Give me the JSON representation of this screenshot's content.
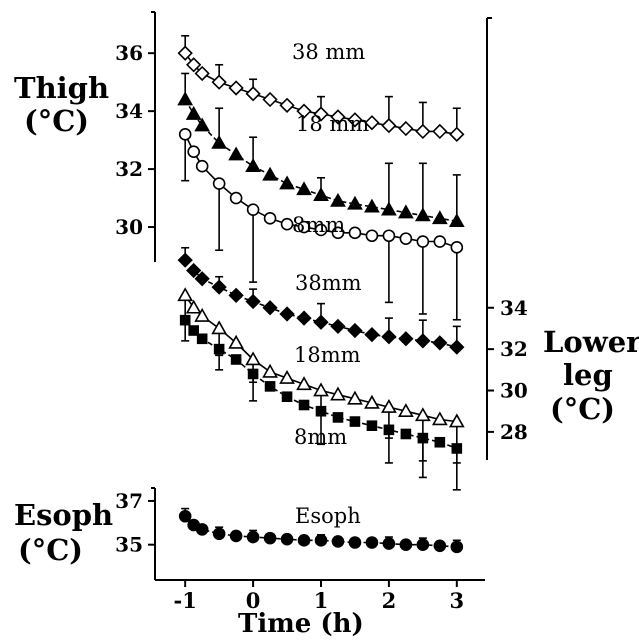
{
  "chart_data": {
    "type": "line",
    "xlabel": "Time (h)",
    "x_ticks": [
      "-1",
      "0",
      "1",
      "2",
      "3"
    ],
    "xlim": [
      -1.15,
      3.15
    ],
    "panels": [
      {
        "id": "thigh",
        "label_line1": "Thigh",
        "label_line2": "(°C)",
        "y_ticks": [
          "36",
          "34",
          "32",
          "30"
        ],
        "ylim": [
          28.0,
          36.8
        ],
        "series": [
          {
            "name": "38 mm",
            "marker": "diamond-open",
            "line": "solid",
            "x": [
              -1,
              -0.875,
              -0.75,
              -0.5,
              -0.25,
              0,
              0.25,
              0.5,
              0.75,
              1,
              1.25,
              1.5,
              1.75,
              2,
              2.25,
              2.5,
              2.75,
              3
            ],
            "y": [
              36.0,
              35.6,
              35.3,
              35.0,
              34.8,
              34.6,
              34.4,
              34.2,
              34.0,
              33.9,
              33.8,
              33.7,
              33.6,
              33.5,
              33.4,
              33.3,
              33.3,
              33.2
            ],
            "err": [
              0.6,
              0,
              0,
              0.6,
              0,
              0.5,
              0,
              0,
              0,
              0.6,
              0,
              0,
              0,
              1.0,
              0,
              1.0,
              0,
              0.9
            ]
          },
          {
            "name": "18 mm",
            "marker": "triangle-filled",
            "line": "dashed",
            "x": [
              -1,
              -0.875,
              -0.75,
              -0.5,
              -0.25,
              0,
              0.25,
              0.5,
              0.75,
              1,
              1.25,
              1.5,
              1.75,
              2,
              2.25,
              2.5,
              2.75,
              3
            ],
            "y": [
              34.4,
              33.9,
              33.5,
              32.9,
              32.5,
              32.1,
              31.8,
              31.5,
              31.3,
              31.1,
              30.9,
              30.8,
              30.7,
              30.6,
              30.5,
              30.4,
              30.3,
              30.2
            ],
            "err": [
              0.9,
              0,
              0,
              1.2,
              0,
              1.0,
              0,
              0,
              0,
              0.6,
              0,
              0,
              0,
              1.6,
              0,
              1.8,
              0,
              1.6
            ]
          },
          {
            "name": "8mm",
            "marker": "circle-open",
            "line": "solid",
            "x": [
              -1,
              -0.875,
              -0.75,
              -0.5,
              -0.25,
              0,
              0.25,
              0.5,
              0.75,
              1,
              1.25,
              1.5,
              1.75,
              2,
              2.25,
              2.5,
              2.75,
              3
            ],
            "y": [
              33.2,
              32.6,
              32.1,
              31.5,
              31.0,
              30.6,
              30.3,
              30.1,
              30.0,
              29.9,
              29.8,
              29.8,
              29.7,
              29.7,
              29.6,
              29.5,
              29.5,
              29.3
            ],
            "err": [
              1.6,
              0,
              0,
              2.3,
              0,
              2.5,
              0,
              0,
              0,
              0,
              0,
              0,
              0,
              2.3,
              0,
              2.5,
              0,
              2.5
            ]
          }
        ]
      },
      {
        "id": "lower_leg",
        "label_line1": "Lower",
        "label_line2": "leg",
        "label_line3": "(°C)",
        "y_ticks": [
          "34",
          "32",
          "30",
          "28"
        ],
        "ylim": [
          26.4,
          38.0
        ],
        "series": [
          {
            "name": "38mm",
            "marker": "diamond-filled",
            "line": "dashed",
            "x": [
              -1,
              -0.875,
              -0.75,
              -0.5,
              -0.25,
              0,
              0.25,
              0.5,
              0.75,
              1,
              1.25,
              1.5,
              1.75,
              2,
              2.25,
              2.5,
              2.75,
              3
            ],
            "y": [
              36.3,
              35.8,
              35.4,
              35.0,
              34.6,
              34.3,
              34.0,
              33.7,
              33.5,
              33.3,
              33.1,
              32.9,
              32.7,
              32.6,
              32.5,
              32.4,
              32.3,
              32.1
            ],
            "err": [
              0.6,
              0,
              0,
              0.5,
              0,
              0.6,
              0,
              0,
              0,
              0.9,
              0,
              0,
              0,
              0.9,
              0,
              1.0,
              0,
              1.0
            ]
          },
          {
            "name": "18mm",
            "marker": "triangle-open",
            "line": "solid",
            "x": [
              -1,
              -0.875,
              -0.75,
              -0.5,
              -0.25,
              0,
              0.25,
              0.5,
              0.75,
              1,
              1.25,
              1.5,
              1.75,
              2,
              2.25,
              2.5,
              2.75,
              3
            ],
            "y": [
              34.6,
              34.0,
              33.6,
              33.0,
              32.3,
              31.5,
              30.9,
              30.6,
              30.3,
              30.0,
              29.8,
              29.6,
              29.4,
              29.2,
              29.0,
              28.8,
              28.6,
              28.5
            ],
            "err": [
              1.3,
              0,
              0,
              1.3,
              0,
              1.1,
              0,
              0,
              0,
              1.1,
              0,
              0,
              0,
              1.5,
              0,
              2.2,
              0,
              2.0
            ]
          },
          {
            "name": "8mm",
            "marker": "square-filled",
            "line": "dashed",
            "x": [
              -1,
              -0.875,
              -0.75,
              -0.5,
              -0.25,
              0,
              0.25,
              0.5,
              0.75,
              1,
              1.25,
              1.5,
              1.75,
              2,
              2.25,
              2.5,
              2.75,
              3
            ],
            "y": [
              33.4,
              32.9,
              32.5,
              32.0,
              31.5,
              30.8,
              30.2,
              29.7,
              29.3,
              29.0,
              28.7,
              28.5,
              28.3,
              28.1,
              27.9,
              27.7,
              27.5,
              27.2
            ],
            "err": [
              1.0,
              0,
              0,
              1.0,
              0,
              1.3,
              0,
              0,
              0,
              1.6,
              0,
              0,
              0,
              1.6,
              0,
              1.9,
              0,
              2.0
            ]
          }
        ]
      },
      {
        "id": "esoph",
        "label_line1": "Esoph",
        "label_line2": "(°C)",
        "y_ticks": [
          "37",
          "35"
        ],
        "ylim": [
          34.3,
          37.5
        ],
        "series": [
          {
            "name": "Esoph",
            "marker": "circle-filled",
            "line": "dashed",
            "x": [
              -1,
              -0.875,
              -0.75,
              -0.5,
              -0.25,
              0,
              0.25,
              0.5,
              0.75,
              1,
              1.25,
              1.5,
              1.75,
              2,
              2.25,
              2.5,
              2.75,
              3
            ],
            "y": [
              36.3,
              35.9,
              35.7,
              35.5,
              35.4,
              35.35,
              35.3,
              35.25,
              35.2,
              35.2,
              35.15,
              35.1,
              35.1,
              35.05,
              35.0,
              35.0,
              34.95,
              34.9
            ],
            "err": [
              0.35,
              0,
              0,
              0.3,
              0,
              0.3,
              0,
              0,
              0,
              0.25,
              0,
              0,
              0,
              0.3,
              0,
              0.3,
              0,
              0.3
            ]
          }
        ]
      }
    ]
  }
}
